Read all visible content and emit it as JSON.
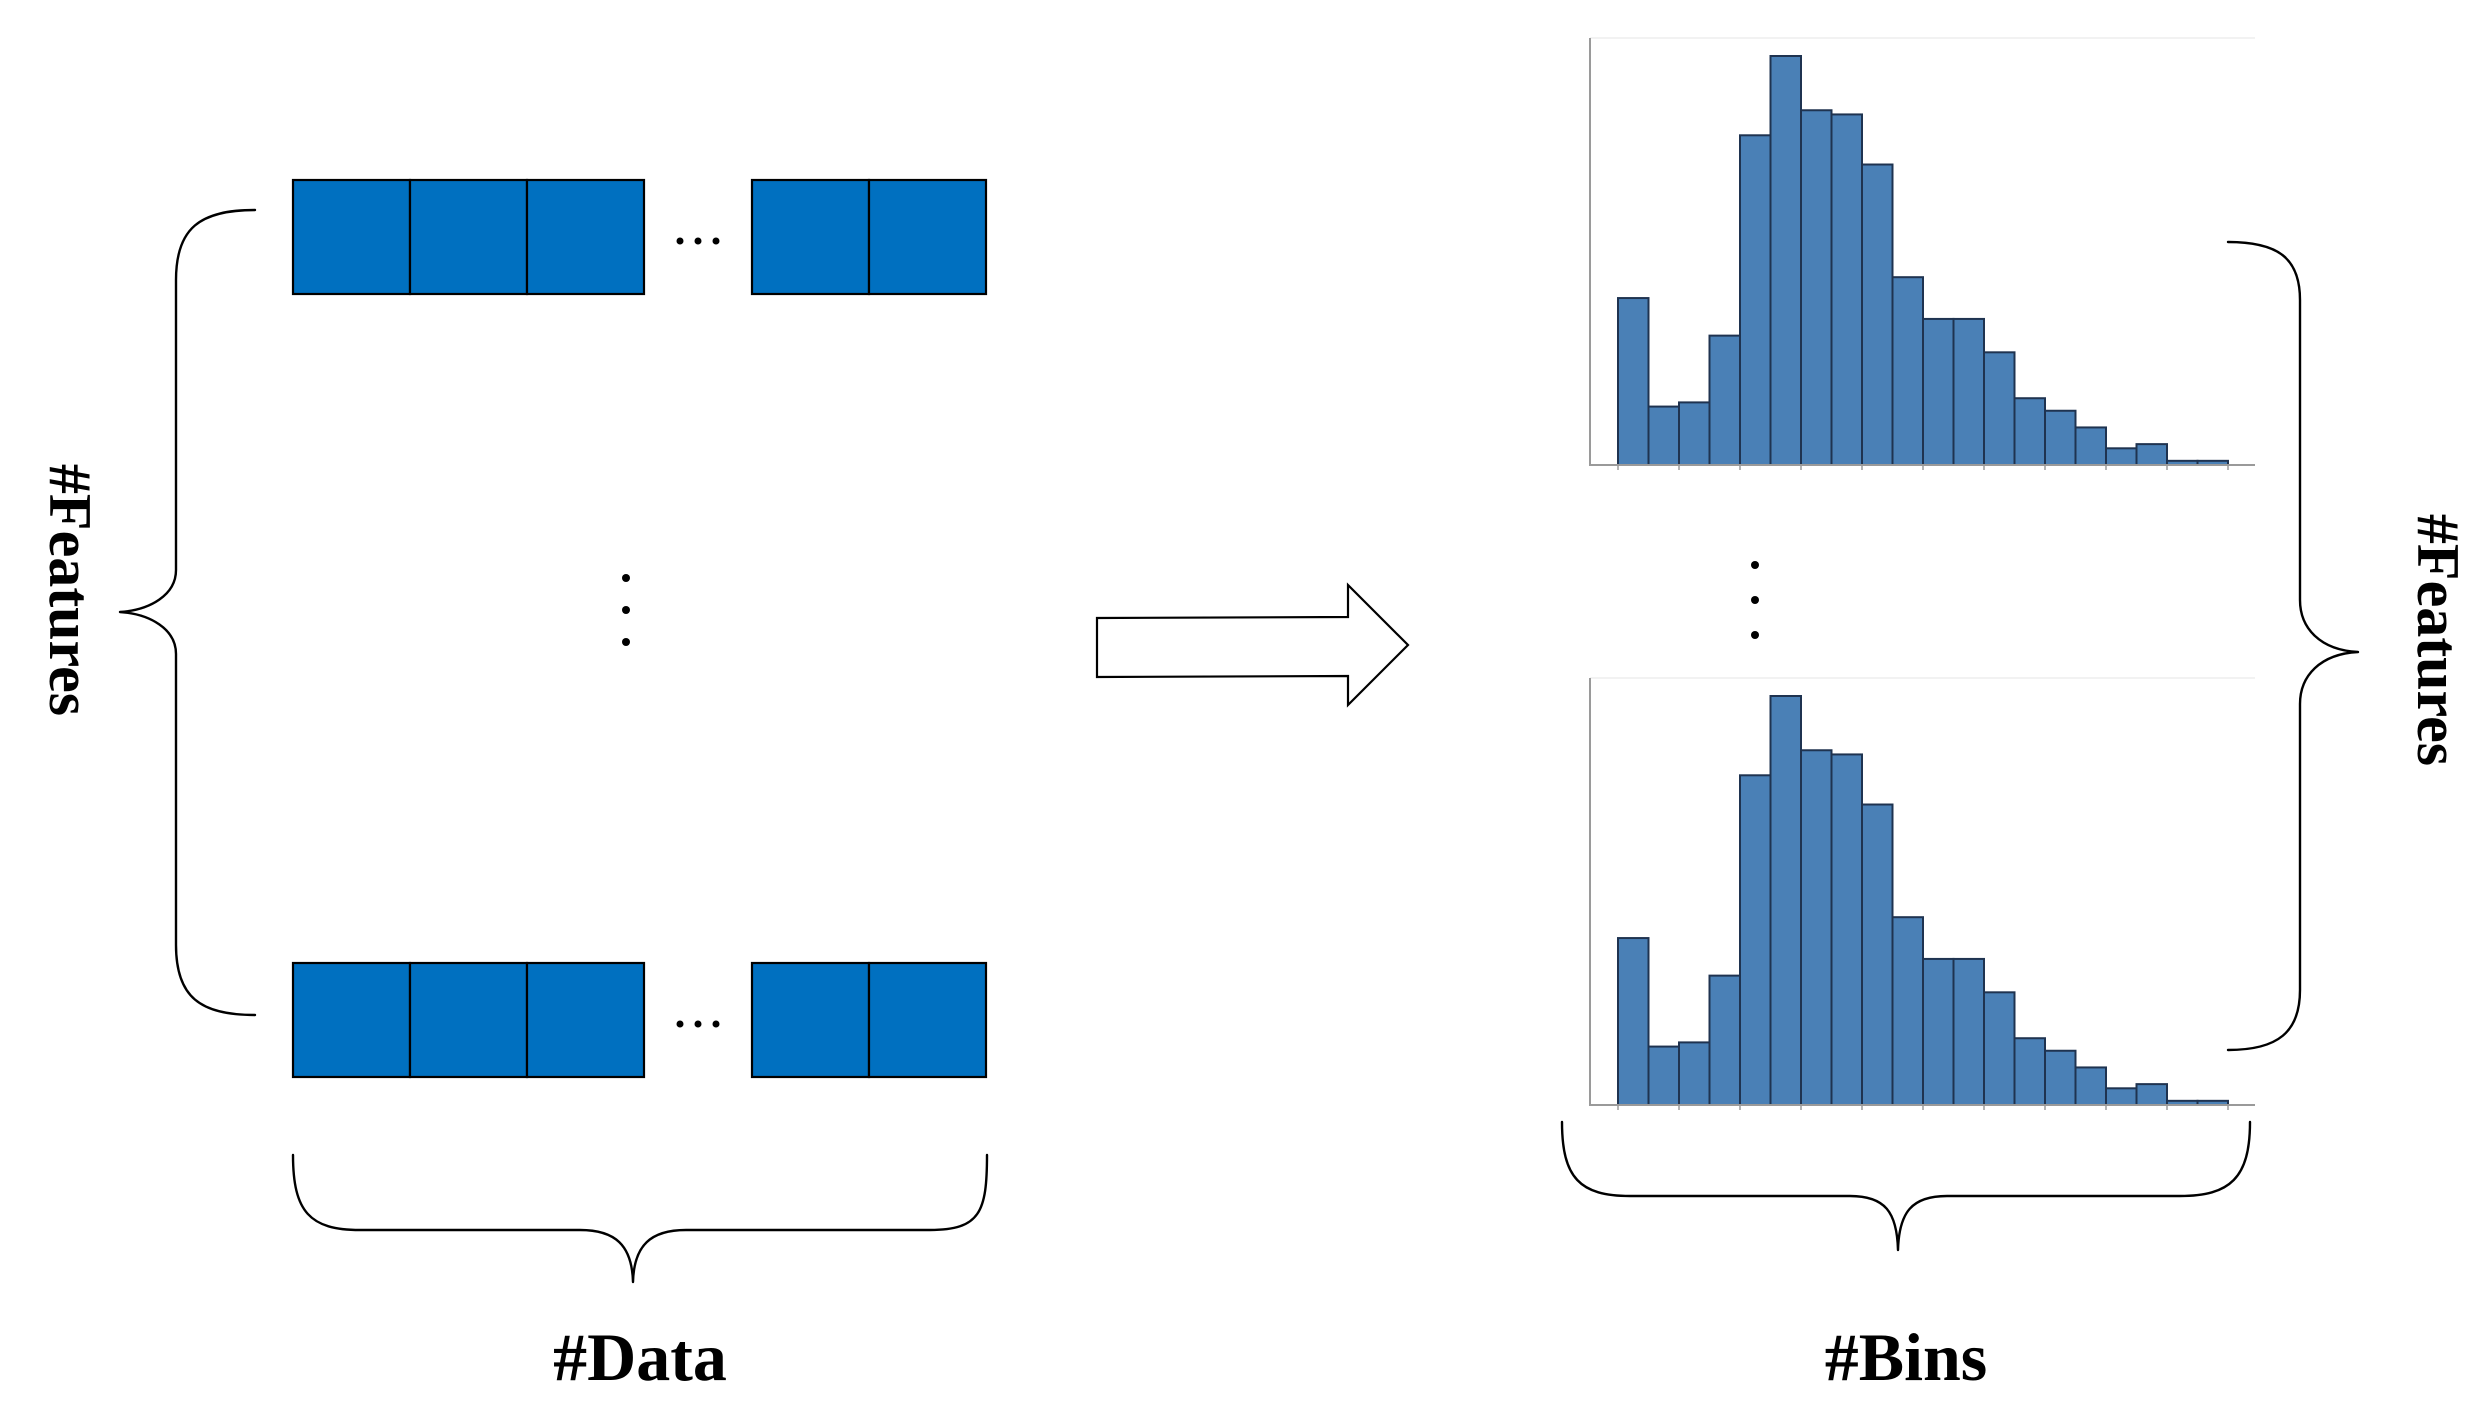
{
  "labels": {
    "features_left": "#Features",
    "features_right": "#Features",
    "data": "#Data",
    "bins": "#Bins"
  },
  "colors": {
    "cell_fill": "#0070C0",
    "bar_fill": "#4A80B6",
    "bar_stroke": "#1F3350",
    "axis": "#9A9A9A"
  },
  "data_rows": [
    {
      "cells_before_ellipsis": 3,
      "cells_after_ellipsis": 2
    },
    {
      "cells_before_ellipsis": 3,
      "cells_after_ellipsis": 2
    }
  ],
  "histograms": [
    {
      "values": [
        40,
        14,
        15,
        31,
        79,
        98,
        85,
        84,
        72,
        45,
        35,
        35,
        27,
        16,
        13,
        9,
        4,
        5,
        1,
        1
      ]
    },
    {
      "values": [
        40,
        14,
        15,
        31,
        79,
        98,
        85,
        84,
        72,
        45,
        35,
        35,
        27,
        16,
        13,
        9,
        4,
        5,
        1,
        1
      ]
    }
  ]
}
